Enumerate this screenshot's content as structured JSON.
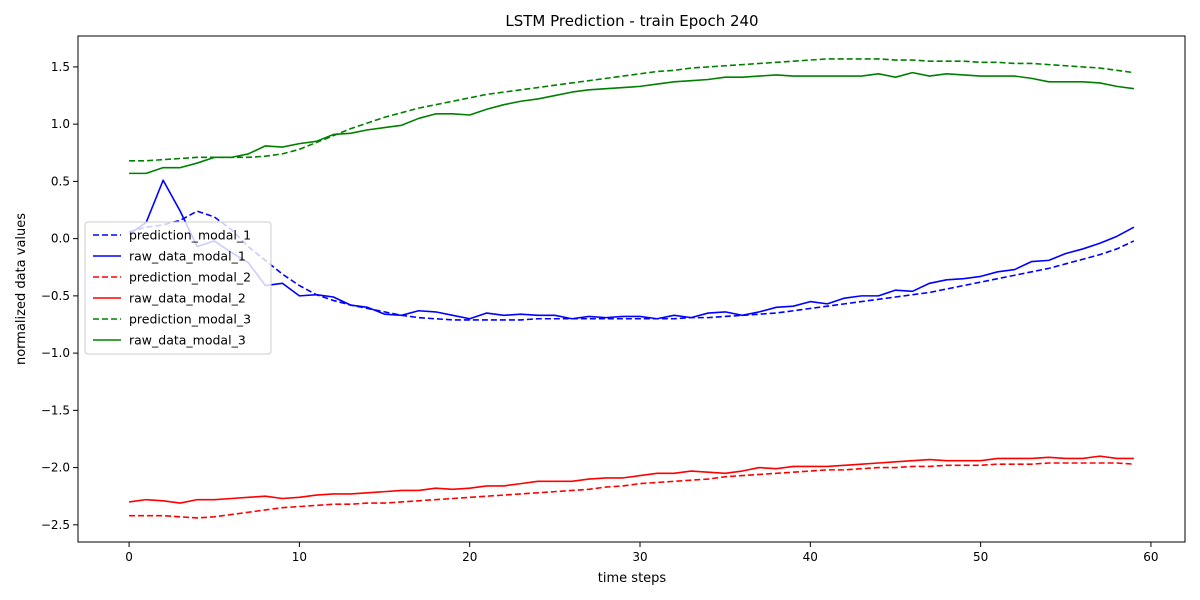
{
  "chart_data": {
    "type": "line",
    "title": "LSTM Prediction - train Epoch 240",
    "xlabel": "time steps",
    "ylabel": "normalized data values",
    "xlim": [
      -3,
      62
    ],
    "ylim": [
      -2.65,
      1.77
    ],
    "xticks": [
      0,
      10,
      20,
      30,
      40,
      50,
      60
    ],
    "yticks": [
      -2.5,
      -2.0,
      -1.5,
      -1.0,
      -0.5,
      0.0,
      0.5,
      1.0,
      1.5
    ],
    "xtick_labels": [
      "0",
      "10",
      "20",
      "30",
      "40",
      "50",
      "60"
    ],
    "ytick_labels": [
      "−2.5",
      "−2.0",
      "−1.5",
      "−1.0",
      "−0.5",
      "0.0",
      "0.5",
      "1.0",
      "1.5"
    ],
    "grid": false,
    "legend_position": "center-left",
    "x": [
      0,
      1,
      2,
      3,
      4,
      5,
      6,
      7,
      8,
      9,
      10,
      11,
      12,
      13,
      14,
      15,
      16,
      17,
      18,
      19,
      20,
      21,
      22,
      23,
      24,
      25,
      26,
      27,
      28,
      29,
      30,
      31,
      32,
      33,
      34,
      35,
      36,
      37,
      38,
      39,
      40,
      41,
      42,
      43,
      44,
      45,
      46,
      47,
      48,
      49,
      50,
      51,
      52,
      53,
      54,
      55,
      56,
      57,
      58,
      59
    ],
    "series": [
      {
        "name": "prediction_modal_1",
        "color": "#0000ff",
        "linestyle": "dashed",
        "values": [
          0.06,
          0.1,
          0.12,
          0.16,
          0.24,
          0.19,
          0.08,
          -0.07,
          -0.19,
          -0.31,
          -0.41,
          -0.49,
          -0.54,
          -0.58,
          -0.61,
          -0.64,
          -0.67,
          -0.69,
          -0.7,
          -0.71,
          -0.71,
          -0.71,
          -0.71,
          -0.71,
          -0.7,
          -0.7,
          -0.7,
          -0.7,
          -0.7,
          -0.7,
          -0.7,
          -0.7,
          -0.7,
          -0.69,
          -0.69,
          -0.68,
          -0.67,
          -0.66,
          -0.65,
          -0.63,
          -0.61,
          -0.59,
          -0.57,
          -0.55,
          -0.53,
          -0.51,
          -0.49,
          -0.47,
          -0.44,
          -0.41,
          -0.38,
          -0.35,
          -0.32,
          -0.29,
          -0.26,
          -0.22,
          -0.18,
          -0.14,
          -0.09,
          -0.02
        ]
      },
      {
        "name": "raw_data_modal_1",
        "color": "#0000ff",
        "linestyle": "solid",
        "values": [
          0.04,
          0.14,
          0.51,
          0.24,
          -0.07,
          -0.02,
          -0.12,
          -0.21,
          -0.41,
          -0.39,
          -0.5,
          -0.49,
          -0.51,
          -0.58,
          -0.6,
          -0.66,
          -0.67,
          -0.63,
          -0.64,
          -0.67,
          -0.7,
          -0.65,
          -0.67,
          -0.66,
          -0.67,
          -0.67,
          -0.7,
          -0.68,
          -0.69,
          -0.68,
          -0.68,
          -0.7,
          -0.67,
          -0.69,
          -0.65,
          -0.64,
          -0.67,
          -0.64,
          -0.6,
          -0.59,
          -0.55,
          -0.57,
          -0.52,
          -0.5,
          -0.5,
          -0.45,
          -0.46,
          -0.39,
          -0.36,
          -0.35,
          -0.33,
          -0.29,
          -0.27,
          -0.2,
          -0.19,
          -0.13,
          -0.09,
          -0.04,
          0.02,
          0.1
        ]
      },
      {
        "name": "prediction_modal_2",
        "color": "#ff0000",
        "linestyle": "dashed",
        "values": [
          -2.42,
          -2.42,
          -2.42,
          -2.43,
          -2.44,
          -2.43,
          -2.41,
          -2.39,
          -2.37,
          -2.35,
          -2.34,
          -2.33,
          -2.32,
          -2.32,
          -2.31,
          -2.31,
          -2.3,
          -2.29,
          -2.28,
          -2.27,
          -2.26,
          -2.25,
          -2.24,
          -2.23,
          -2.22,
          -2.21,
          -2.2,
          -2.19,
          -2.17,
          -2.16,
          -2.14,
          -2.13,
          -2.12,
          -2.11,
          -2.1,
          -2.08,
          -2.07,
          -2.06,
          -2.05,
          -2.04,
          -2.03,
          -2.02,
          -2.02,
          -2.01,
          -2.0,
          -2.0,
          -1.99,
          -1.99,
          -1.98,
          -1.98,
          -1.98,
          -1.97,
          -1.97,
          -1.97,
          -1.96,
          -1.96,
          -1.96,
          -1.96,
          -1.96,
          -1.97
        ]
      },
      {
        "name": "raw_data_modal_2",
        "color": "#ff0000",
        "linestyle": "solid",
        "values": [
          -2.3,
          -2.28,
          -2.29,
          -2.31,
          -2.28,
          -2.28,
          -2.27,
          -2.26,
          -2.25,
          -2.27,
          -2.26,
          -2.24,
          -2.23,
          -2.23,
          -2.22,
          -2.21,
          -2.2,
          -2.2,
          -2.18,
          -2.19,
          -2.18,
          -2.16,
          -2.16,
          -2.14,
          -2.12,
          -2.12,
          -2.12,
          -2.1,
          -2.09,
          -2.09,
          -2.07,
          -2.05,
          -2.05,
          -2.03,
          -2.04,
          -2.05,
          -2.03,
          -2.0,
          -2.01,
          -1.99,
          -1.99,
          -1.99,
          -1.98,
          -1.97,
          -1.96,
          -1.95,
          -1.94,
          -1.93,
          -1.94,
          -1.94,
          -1.94,
          -1.92,
          -1.92,
          -1.92,
          -1.91,
          -1.92,
          -1.92,
          -1.9,
          -1.92,
          -1.92
        ]
      },
      {
        "name": "prediction_modal_3",
        "color": "#008000",
        "linestyle": "dashed",
        "values": [
          0.68,
          0.68,
          0.69,
          0.7,
          0.71,
          0.71,
          0.71,
          0.71,
          0.72,
          0.74,
          0.78,
          0.84,
          0.9,
          0.96,
          1.01,
          1.06,
          1.1,
          1.14,
          1.17,
          1.2,
          1.23,
          1.26,
          1.28,
          1.3,
          1.32,
          1.34,
          1.36,
          1.38,
          1.4,
          1.42,
          1.44,
          1.46,
          1.47,
          1.49,
          1.5,
          1.51,
          1.52,
          1.53,
          1.54,
          1.55,
          1.56,
          1.57,
          1.57,
          1.57,
          1.57,
          1.56,
          1.56,
          1.55,
          1.55,
          1.55,
          1.54,
          1.54,
          1.53,
          1.53,
          1.52,
          1.51,
          1.5,
          1.49,
          1.47,
          1.45
        ]
      },
      {
        "name": "raw_data_modal_3",
        "color": "#008000",
        "linestyle": "solid",
        "values": [
          0.57,
          0.57,
          0.62,
          0.62,
          0.66,
          0.71,
          0.71,
          0.74,
          0.81,
          0.8,
          0.83,
          0.85,
          0.91,
          0.92,
          0.95,
          0.97,
          0.99,
          1.05,
          1.09,
          1.09,
          1.08,
          1.13,
          1.17,
          1.2,
          1.22,
          1.25,
          1.28,
          1.3,
          1.31,
          1.32,
          1.33,
          1.35,
          1.37,
          1.38,
          1.39,
          1.41,
          1.41,
          1.42,
          1.43,
          1.42,
          1.42,
          1.42,
          1.42,
          1.42,
          1.44,
          1.41,
          1.45,
          1.42,
          1.44,
          1.43,
          1.42,
          1.42,
          1.42,
          1.4,
          1.37,
          1.37,
          1.37,
          1.36,
          1.33,
          1.31
        ]
      }
    ]
  }
}
